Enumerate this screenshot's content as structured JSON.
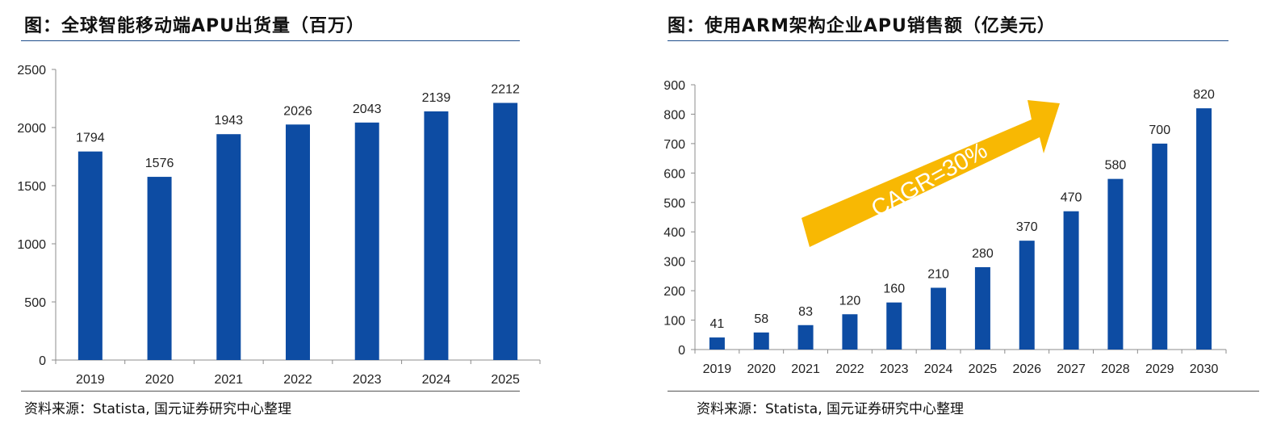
{
  "colors": {
    "bar": "#0d4ca3",
    "arrow": "#f8b803",
    "axis": "#8c8c8c",
    "rule": "#1f4e8c"
  },
  "left": {
    "title": "图：全球智能移动端APU出货量（百万）",
    "source": "资料来源：Statista, 国元证券研究中心整理"
  },
  "right": {
    "title": "图：使用ARM架构企业APU销售额（亿美元）",
    "source": "资料来源：Statista, 国元证券研究中心整理",
    "annotation": "CAGR=30%"
  },
  "chart_data": [
    {
      "type": "bar",
      "title": "图：全球智能移动端APU出货量（百万）",
      "categories": [
        "2019",
        "2020",
        "2021",
        "2022",
        "2023",
        "2024",
        "2025"
      ],
      "values": [
        1794,
        1576,
        1943,
        2026,
        2043,
        2139,
        2212
      ],
      "ylim": [
        0,
        2500
      ],
      "yticks": [
        0,
        500,
        1000,
        1500,
        2000,
        2500
      ],
      "grid": false,
      "legend": "none"
    },
    {
      "type": "bar",
      "title": "图：使用ARM架构企业APU销售额（亿美元）",
      "categories": [
        "2019",
        "2020",
        "2021",
        "2022",
        "2023",
        "2024",
        "2025",
        "2026",
        "2027",
        "2028",
        "2029",
        "2030"
      ],
      "values": [
        41,
        58,
        83,
        120,
        160,
        210,
        280,
        370,
        470,
        580,
        700,
        820
      ],
      "ylim": [
        0,
        900
      ],
      "yticks": [
        0,
        100,
        200,
        300,
        400,
        500,
        600,
        700,
        800,
        900
      ],
      "grid": false,
      "legend": "none",
      "annotations": [
        "CAGR=30%"
      ]
    }
  ]
}
